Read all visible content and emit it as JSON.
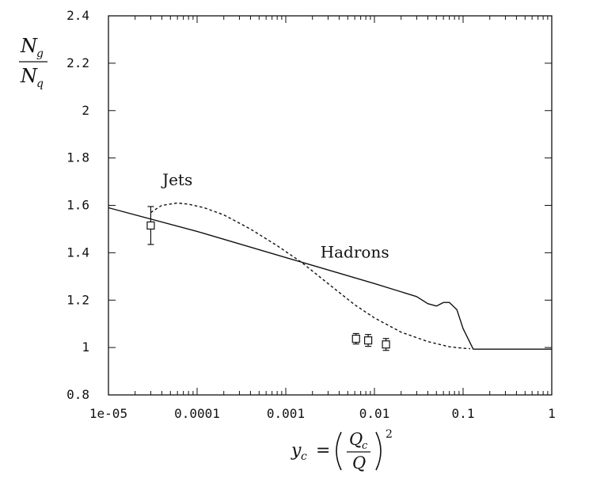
{
  "chart_data": {
    "type": "line",
    "x_scale": "log",
    "xlim": [
      1e-05,
      1
    ],
    "ylim": [
      0.8,
      2.4
    ],
    "grid": false,
    "xticks": [
      "1e-05",
      "0.0001",
      "0.001",
      "0.01",
      "0.1",
      "1"
    ],
    "yticks": [
      "0.8",
      "1",
      "1.2",
      "1.4",
      "1.6",
      "1.8",
      "2",
      "2.2",
      "2.4"
    ],
    "ylabel": {
      "numerator": "N",
      "numerator_sub": "g",
      "denominator": "N",
      "denominator_sub": "q"
    },
    "xlabel": {
      "lhs": "y",
      "lhs_sub": "c",
      "eq": " = ",
      "numerator": "Q",
      "numerator_sub": "c",
      "denominator": "Q",
      "power": "2"
    },
    "series": [
      {
        "name": "Hadrons",
        "style": "solid",
        "x": [
          1e-05,
          0.0001,
          0.001,
          0.01,
          0.03,
          0.04,
          0.05,
          0.06,
          0.07,
          0.085,
          0.1,
          0.13,
          0.2,
          0.5,
          1
        ],
        "y": [
          1.59,
          1.49,
          1.38,
          1.27,
          1.215,
          1.185,
          1.175,
          1.19,
          1.19,
          1.16,
          1.08,
          0.993,
          0.993,
          0.993,
          0.993
        ]
      },
      {
        "name": "Jets",
        "style": "dashed",
        "x": [
          3e-05,
          4e-05,
          6e-05,
          8e-05,
          0.00012,
          0.0002,
          0.0004,
          0.0008,
          0.0015,
          0.003,
          0.006,
          0.01,
          0.02,
          0.04,
          0.07,
          0.1,
          0.12
        ],
        "y": [
          1.57,
          1.6,
          1.61,
          1.605,
          1.59,
          1.56,
          1.5,
          1.43,
          1.36,
          1.27,
          1.18,
          1.125,
          1.065,
          1.025,
          1.003,
          0.997,
          0.995
        ]
      },
      {
        "name": "",
        "style": "markers",
        "marker": "open-square",
        "x": [
          3e-05,
          0.0062,
          0.0085,
          0.0135
        ],
        "y": [
          1.515,
          1.037,
          1.03,
          1.013
        ],
        "yerr": [
          0.08,
          0.022,
          0.025,
          0.025
        ]
      }
    ],
    "annotations": [
      {
        "text": "Jets",
        "x": 6e-05,
        "y": 1.685
      },
      {
        "text": "Hadrons",
        "x": 0.006,
        "y": 1.38
      }
    ]
  }
}
